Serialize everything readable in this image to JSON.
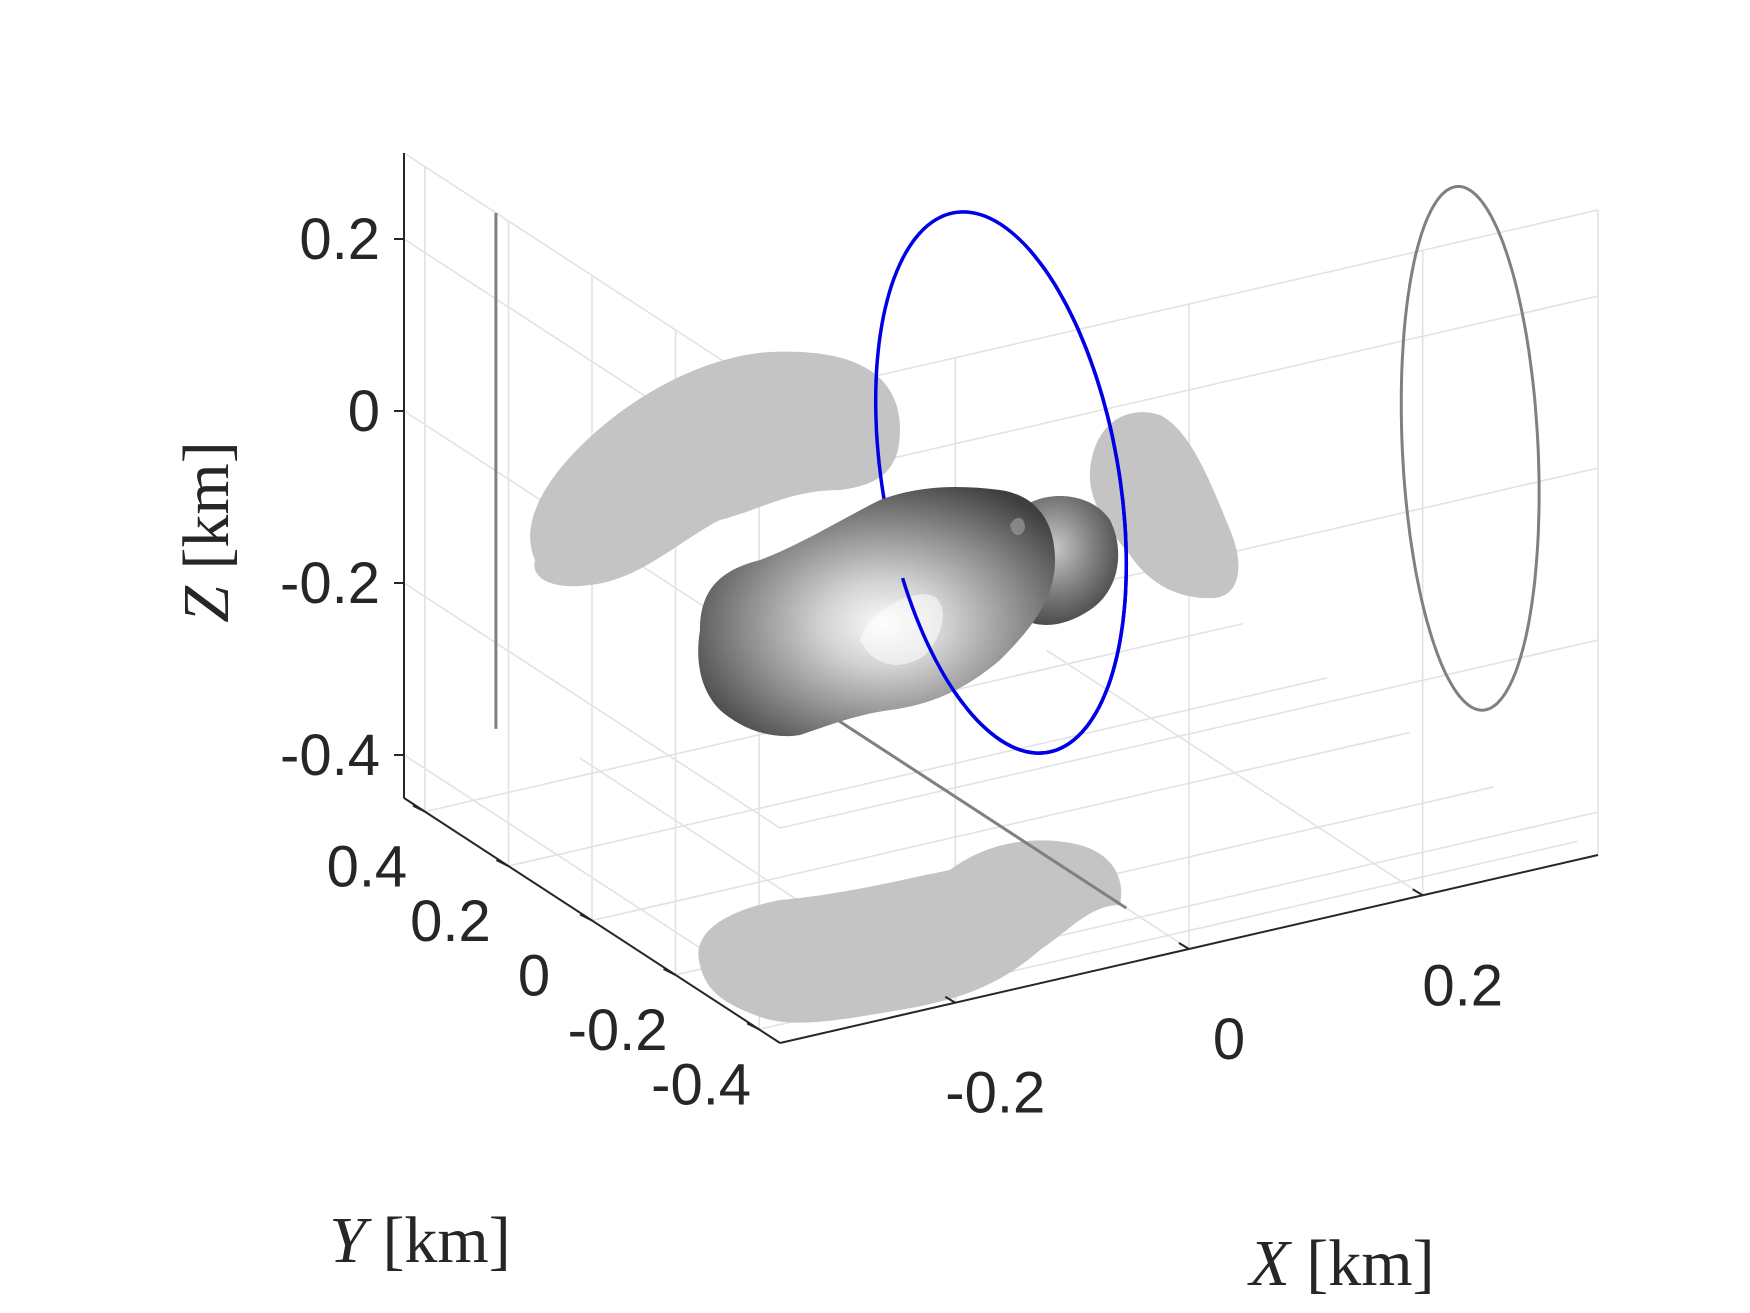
{
  "chart_data": {
    "type": "3d-surface",
    "view": "isometric",
    "grid": true,
    "axes": {
      "x": {
        "label_var": "X",
        "label_unit": "[km]",
        "ticks": [
          -0.2,
          0,
          0.2
        ],
        "tick_labels": [
          "-0.2",
          "0",
          "0.2"
        ],
        "lim": [
          -0.35,
          0.35
        ]
      },
      "y": {
        "label_var": "Y",
        "label_unit": "[km]",
        "ticks": [
          -0.4,
          -0.2,
          0,
          0.2,
          0.4
        ],
        "tick_labels": [
          "-0.4",
          "-0.2",
          "0",
          "0.2",
          "0.4"
        ],
        "lim": [
          -0.45,
          0.45
        ]
      },
      "z": {
        "label_var": "Z",
        "label_unit": "[km]",
        "ticks": [
          -0.4,
          -0.2,
          0,
          0.2
        ],
        "tick_labels": [
          "-0.4",
          "-0.2",
          "0",
          "0.2"
        ],
        "lim": [
          -0.45,
          0.3
        ]
      }
    },
    "orbit": {
      "color": "#0000e6",
      "center": [
        0,
        0,
        -0.05
      ],
      "radius": 0.3,
      "plane": "x=0"
    },
    "orbit_projection_color": "#808080",
    "body_color": "#8a8a8a",
    "shadow_color": "#c4c4c4"
  }
}
